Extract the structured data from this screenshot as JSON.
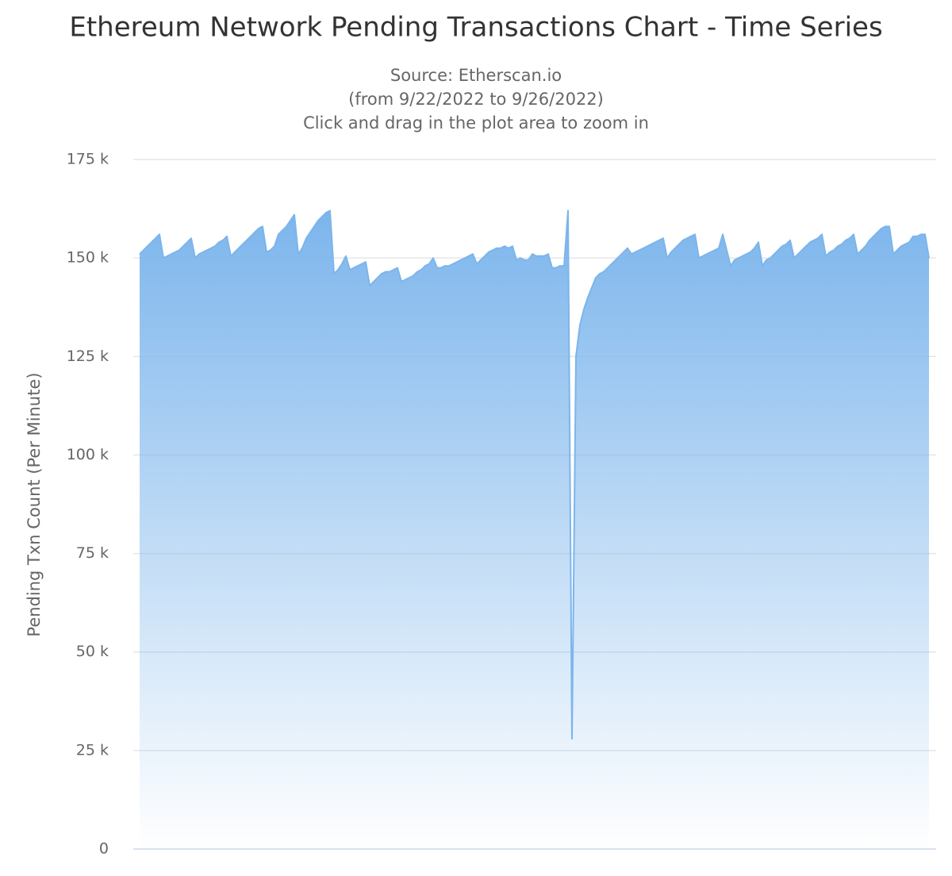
{
  "chart_data": {
    "type": "area",
    "title": "Ethereum Network Pending Transactions Chart - Time Series",
    "subtitle": [
      "Source: Etherscan.io",
      "(from 9/22/2022 to 9/26/2022)",
      "Click and drag in the plot area to zoom in"
    ],
    "y_label": "Pending Txn Count (Per Minute)",
    "color": "#7cb5ec",
    "grid": true,
    "ylim": [
      0,
      175000
    ],
    "yticks": [
      {
        "value": 0,
        "label": "0"
      },
      {
        "value": 25000,
        "label": "25 k"
      },
      {
        "value": 50000,
        "label": "50 k"
      },
      {
        "value": 75000,
        "label": "75 k"
      },
      {
        "value": 100000,
        "label": "100 k"
      },
      {
        "value": 125000,
        "label": "125 k"
      },
      {
        "value": 150000,
        "label": "150 k"
      },
      {
        "value": 175000,
        "label": "175 k"
      }
    ],
    "values": [
      151000,
      152000,
      153000,
      154000,
      155000,
      156000,
      150000,
      150500,
      151000,
      151500,
      152000,
      153000,
      154000,
      155000,
      150000,
      151000,
      151500,
      152000,
      152500,
      153000,
      154000,
      154500,
      155500,
      150500,
      151500,
      152500,
      153500,
      154500,
      155500,
      156500,
      157500,
      158000,
      151500,
      152000,
      153000,
      156000,
      157000,
      158000,
      159500,
      161000,
      151000,
      152500,
      155000,
      156500,
      158000,
      159500,
      160500,
      161500,
      162000,
      146000,
      147000,
      148500,
      150500,
      147000,
      147500,
      148000,
      148500,
      149000,
      143000,
      144000,
      145000,
      146000,
      146500,
      146500,
      147000,
      147500,
      144000,
      144500,
      145000,
      145500,
      146500,
      147000,
      148000,
      148500,
      150000,
      147500,
      147500,
      148000,
      148000,
      148500,
      149000,
      149500,
      150000,
      150500,
      151000,
      148500,
      149500,
      150500,
      151500,
      152000,
      152500,
      152500,
      153000,
      152500,
      153000,
      149500,
      150000,
      149500,
      149500,
      151000,
      150500,
      150500,
      150500,
      151000,
      147500,
      147500,
      148000,
      148000,
      162000,
      28000,
      125000,
      133000,
      137000,
      140000,
      142500,
      145000,
      146000,
      146500,
      147500,
      148500,
      149500,
      150500,
      151500,
      152500,
      151000,
      151500,
      152000,
      152500,
      153000,
      153500,
      154000,
      154500,
      155000,
      150000,
      151500,
      152500,
      153500,
      154500,
      155000,
      155500,
      156000,
      150000,
      150500,
      151000,
      151500,
      152000,
      152500,
      156000,
      152000,
      148000,
      149500,
      150000,
      150500,
      151000,
      151500,
      152500,
      154000,
      148000,
      149500,
      150000,
      151000,
      152000,
      153000,
      153500,
      154500,
      150000,
      151000,
      152000,
      153000,
      154000,
      154500,
      155000,
      156000,
      150500,
      151500,
      152000,
      153000,
      153500,
      154500,
      155000,
      156000,
      151000,
      152000,
      153000,
      154500,
      155500,
      156500,
      157500,
      158000,
      158000,
      151000,
      152000,
      153000,
      153500,
      154000,
      155500,
      155500,
      156000,
      156000,
      150000
    ]
  }
}
